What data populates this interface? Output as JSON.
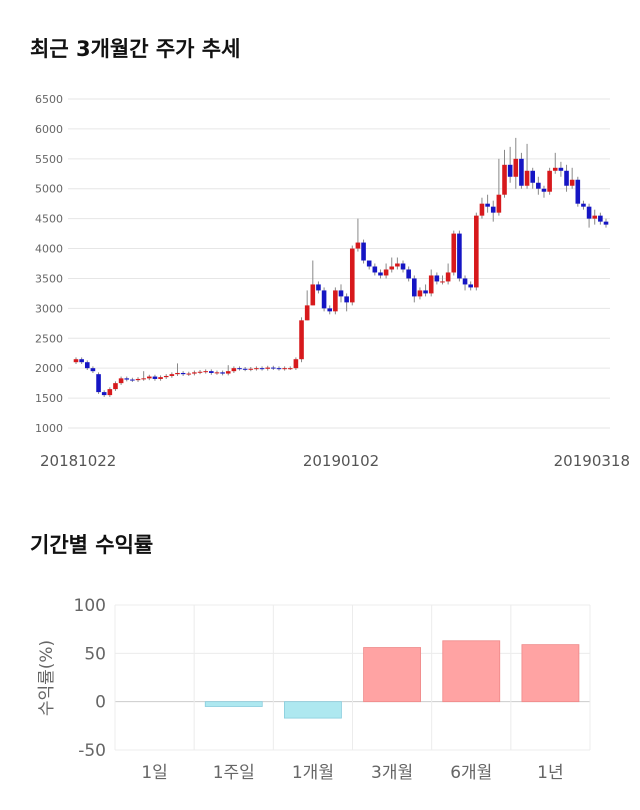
{
  "chart_data": [
    {
      "type": "candlestick",
      "title": "최근 3개월간 주가 추세",
      "categories": [
        "20181022",
        null,
        null,
        null,
        null,
        null,
        null,
        null,
        null,
        null,
        null,
        null,
        null,
        null,
        null,
        null,
        null,
        null,
        null,
        null,
        null,
        null,
        null,
        null,
        null,
        null,
        null,
        null,
        null,
        null,
        null,
        null,
        null,
        null,
        null,
        null,
        null,
        null,
        null,
        null,
        null,
        null,
        null,
        null,
        null,
        null,
        null,
        "20190102",
        null,
        null,
        null,
        null,
        null,
        null,
        null,
        null,
        null,
        null,
        null,
        null,
        null,
        null,
        null,
        null,
        null,
        null,
        null,
        null,
        null,
        null,
        null,
        null,
        null,
        null,
        null,
        null,
        null,
        null,
        null,
        null,
        null,
        null,
        null,
        null,
        null,
        null,
        null,
        null,
        null,
        null,
        null,
        null,
        null,
        null,
        "20190318"
      ],
      "open": [
        2100,
        2150,
        2100,
        2000,
        1900,
        1600,
        1550,
        1650,
        1750,
        1830,
        1810,
        1800,
        1820,
        1830,
        1860,
        1820,
        1850,
        1870,
        1900,
        1920,
        1900,
        1910,
        1930,
        1940,
        1950,
        1920,
        1930,
        1910,
        1950,
        2000,
        1990,
        1980,
        1990,
        2000,
        1990,
        2010,
        2000,
        1990,
        2000,
        2000,
        2150,
        2800,
        3050,
        3400,
        3300,
        3000,
        2950,
        3300,
        3200,
        3100,
        4000,
        4100,
        3800,
        3700,
        3600,
        3550,
        3650,
        3700,
        3750,
        3650,
        3500,
        3200,
        3300,
        3250,
        3550,
        3450,
        3450,
        3600,
        4250,
        3500,
        3400,
        3350,
        4550,
        4750,
        4700,
        4600,
        4900,
        5400,
        5200,
        5500,
        5050,
        5300,
        5100,
        5000,
        4950,
        5300,
        5350,
        5300,
        5050,
        5150,
        4750,
        4700,
        4500,
        4550,
        4450
      ],
      "high": [
        2180,
        2180,
        2130,
        2030,
        1930,
        1630,
        1680,
        1780,
        1860,
        1860,
        1840,
        1850,
        1950,
        1890,
        1890,
        1880,
        1900,
        1930,
        2080,
        1950,
        1940,
        1960,
        1970,
        1980,
        1980,
        1960,
        1960,
        2050,
        2030,
        2030,
        2020,
        2020,
        2030,
        2030,
        2040,
        2040,
        2030,
        2030,
        2030,
        2180,
        2850,
        3300,
        3800,
        3450,
        3350,
        3050,
        3350,
        3400,
        3250,
        4050,
        4500,
        4150,
        3800,
        3750,
        3650,
        3750,
        3850,
        3850,
        3800,
        3700,
        3550,
        3350,
        3400,
        3650,
        3600,
        3550,
        3750,
        4300,
        4300,
        3550,
        3450,
        4600,
        4850,
        4900,
        4800,
        5500,
        5650,
        5700,
        5850,
        5600,
        5750,
        5350,
        5200,
        5050,
        5350,
        5600,
        5450,
        5400,
        5350,
        5200,
        4800,
        4750,
        4650,
        4600,
        4500
      ],
      "low": [
        2070,
        2070,
        1970,
        1920,
        1570,
        1520,
        1520,
        1620,
        1720,
        1780,
        1770,
        1770,
        1790,
        1800,
        1790,
        1790,
        1820,
        1840,
        1870,
        1870,
        1870,
        1880,
        1900,
        1910,
        1890,
        1890,
        1880,
        1880,
        1920,
        1960,
        1950,
        1950,
        1960,
        1960,
        1960,
        1970,
        1960,
        1960,
        1970,
        1970,
        2100,
        2800,
        3050,
        3250,
        2950,
        2900,
        2900,
        3100,
        2950,
        3050,
        3950,
        3750,
        3650,
        3550,
        3500,
        3500,
        3600,
        3650,
        3600,
        3450,
        3100,
        3150,
        3200,
        3200,
        3400,
        3400,
        3400,
        3550,
        3450,
        3300,
        3300,
        3300,
        4500,
        4600,
        4450,
        4550,
        4850,
        5100,
        5000,
        5000,
        5000,
        5000,
        4900,
        4850,
        4900,
        5250,
        5200,
        4950,
        5000,
        4700,
        4650,
        4350,
        4400,
        4400,
        4350
      ],
      "close": [
        2150,
        2100,
        2000,
        1950,
        1600,
        1550,
        1650,
        1750,
        1830,
        1810,
        1800,
        1820,
        1830,
        1860,
        1820,
        1850,
        1870,
        1900,
        1920,
        1900,
        1910,
        1930,
        1940,
        1950,
        1920,
        1930,
        1910,
        1950,
        2000,
        1990,
        1980,
        1990,
        2000,
        1990,
        2010,
        2000,
        1990,
        2000,
        2000,
        2150,
        2800,
        3050,
        3400,
        3300,
        3000,
        2950,
        3300,
        3200,
        3100,
        4000,
        4100,
        3800,
        3700,
        3600,
        3550,
        3650,
        3700,
        3750,
        3650,
        3500,
        3200,
        3300,
        3250,
        3550,
        3450,
        3450,
        3600,
        4250,
        3500,
        3400,
        3350,
        4550,
        4750,
        4700,
        4600,
        4900,
        5400,
        5200,
        5500,
        5050,
        5300,
        5100,
        5000,
        4950,
        5300,
        5350,
        5300,
        5050,
        5150,
        4750,
        4700,
        4500,
        4550,
        4450,
        4400
      ],
      "up_color": "#d7191c",
      "down_color": "#1515c4",
      "ylim": [
        1000,
        6500
      ],
      "yticks": [
        1000,
        1500,
        2000,
        2500,
        3000,
        3500,
        4000,
        4500,
        5000,
        5500,
        6000,
        6500
      ],
      "grid": true
    },
    {
      "type": "bar",
      "title": "기간별 수익률",
      "ylabel": "수익률(%)",
      "categories": [
        "1일",
        "1주일",
        "1개월",
        "3개월",
        "6개월",
        "1년"
      ],
      "values": [
        0,
        -5,
        -17,
        56,
        63,
        59
      ],
      "positive_color": "#ffa3a3",
      "negative_color": "#aee8f0",
      "ylim": [
        -50,
        100
      ],
      "yticks": [
        -50,
        0,
        50,
        100
      ],
      "grid": true
    }
  ]
}
